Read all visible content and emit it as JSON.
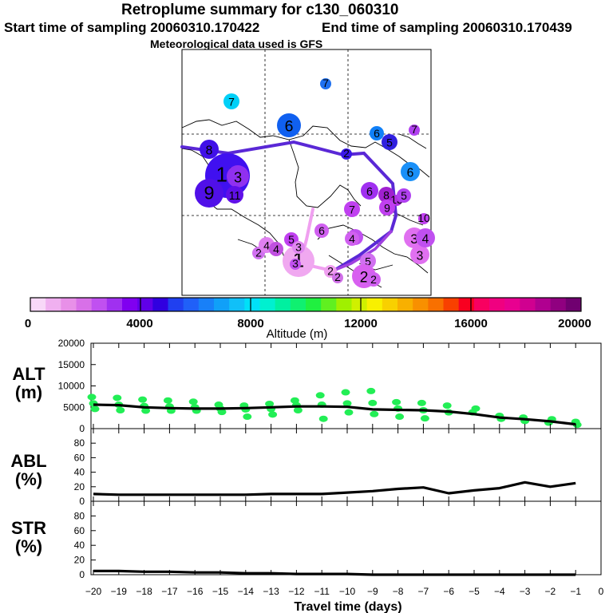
{
  "header": {
    "title": "Retroplume summary for c130_060310",
    "start_label": "Start time of sampling 20060310.170422",
    "end_label": "End time of sampling 20060310.170439",
    "met_label": "Meteorological data used is GFS"
  },
  "colors": {
    "palette": [
      "#f8d8f8",
      "#f0b0f0",
      "#e890e8",
      "#d870e8",
      "#c050f0",
      "#a030f0",
      "#8000f0",
      "#6000e8",
      "#3000e0",
      "#2040f0",
      "#2060f8",
      "#1880f8",
      "#10a0f8",
      "#10c0f8",
      "#00e0f8",
      "#00f0d0",
      "#00f0a0",
      "#10f070",
      "#20f040",
      "#60f020",
      "#a0f000",
      "#d0f000",
      "#f8f000",
      "#f8d000",
      "#f8b000",
      "#f89000",
      "#f87000",
      "#f84000",
      "#f80020",
      "#f80060",
      "#f00080",
      "#e80090",
      "#d00090",
      "#b00090",
      "#900080",
      "#700070"
    ],
    "scatter": "#22ee55",
    "track_upper": "#5a28d6",
    "track_lower": "#a040e0",
    "track_light": "#f0a0f0"
  },
  "map": {
    "points": [
      {
        "label": "7",
        "color": "#00d0f8",
        "alt": 7500
      },
      {
        "label": "7",
        "color": "#1e70f0",
        "alt": 5200
      },
      {
        "label": "6",
        "color": "#1060f0",
        "alt": 5600
      },
      {
        "label": "6",
        "color": "#1080f8",
        "alt": 5300
      },
      {
        "label": "5",
        "color": "#3020e0",
        "alt": 4300
      },
      {
        "label": "7",
        "color": "#b040f0",
        "alt": 2400
      },
      {
        "label": "8",
        "color": "#4010e8",
        "alt": 4400
      },
      {
        "label": "10",
        "color": "#4010f0",
        "alt": 4500
      },
      {
        "label": "3",
        "color": "#9030f0",
        "alt": 3800
      },
      {
        "label": "9",
        "color": "#5010e8",
        "alt": 4600
      },
      {
        "label": "11",
        "color": "#6010e8",
        "alt": 4400
      },
      {
        "label": "2",
        "color": "#3a18e8",
        "alt": 4300
      },
      {
        "label": "6",
        "color": "#1a90f8",
        "alt": 5800
      },
      {
        "label": "6",
        "color": "#a030f0",
        "alt": 3400
      },
      {
        "label": "8",
        "color": "#a020d0",
        "alt": 3200
      },
      {
        "label": "13",
        "color": "#b030e0",
        "alt": 3000
      },
      {
        "label": "5",
        "color": "#b040f0",
        "alt": 2900
      },
      {
        "label": "9",
        "color": "#c040f0",
        "alt": 2700
      },
      {
        "label": "7",
        "color": "#c040f0",
        "alt": 2600
      },
      {
        "label": "6",
        "color": "#d060f0",
        "alt": 2000
      },
      {
        "label": "4",
        "color": "#c050f0",
        "alt": 2000
      },
      {
        "label": "3",
        "color": "#e070f0",
        "alt": 1500
      },
      {
        "label": "3",
        "color": "#e070f0",
        "alt": 1400
      },
      {
        "label": "4",
        "color": "#c050f0",
        "alt": 1600
      },
      {
        "label": "10",
        "color": "#c040f0",
        "alt": 2100
      },
      {
        "label": "5",
        "color": "#c040f0",
        "alt": 1900
      },
      {
        "label": "2",
        "color": "#d070f0",
        "alt": 1300
      },
      {
        "label": "1",
        "color": "#f0a8f0",
        "alt": 600
      },
      {
        "label": "4",
        "color": "#e080f0",
        "alt": 1300
      },
      {
        "label": "2",
        "color": "#f0a0f0",
        "alt": 900
      },
      {
        "label": "3",
        "color": "#e088f0",
        "alt": 1100
      },
      {
        "label": "5",
        "color": "#d070f0",
        "alt": 1200
      },
      {
        "label": "2",
        "color": "#d860f0",
        "alt": 1000
      },
      {
        "label": "2",
        "color": "#d060f0",
        "alt": 900
      },
      {
        "label": "3",
        "color": "#c050f0",
        "alt": 900
      },
      {
        "label": "2",
        "color": "#d070e8",
        "alt": 800
      },
      {
        "label": "4",
        "color": "#c050e0",
        "alt": 1700
      },
      {
        "label": "4",
        "color": "#d060f0",
        "alt": 1000
      }
    ]
  },
  "chart_data": [
    {
      "type": "heatmap",
      "title": "Altitude colorbar",
      "xlabel": "Altitude (m)",
      "range": [
        0,
        20000
      ],
      "tick_labels": [
        "0",
        "4000",
        "8000",
        "12000",
        "16000",
        "20000"
      ]
    },
    {
      "type": "scatter",
      "ylabel_line1": "ALT",
      "ylabel_line2": "(m)",
      "ylim": [
        0,
        20000
      ],
      "yticks": [
        "0",
        "5000",
        "10000",
        "15000",
        "20000"
      ],
      "ytick_values": [
        0,
        5000,
        10000,
        15000,
        20000
      ],
      "median_x": [
        -20,
        -19,
        -18,
        -17,
        -16,
        -15,
        -14,
        -13,
        -12,
        -11,
        -10,
        -9,
        -8,
        -7,
        -6,
        -5,
        -4,
        -3,
        -2,
        -1
      ],
      "median_y": [
        5600,
        5500,
        5000,
        4800,
        4700,
        4700,
        4800,
        5000,
        5200,
        5200,
        5100,
        4500,
        4400,
        4300,
        4000,
        3400,
        2600,
        2200,
        1700,
        1000
      ],
      "scatter_x": [
        -20,
        -20,
        -20,
        -19,
        -19,
        -19,
        -18,
        -18,
        -18,
        -17,
        -17,
        -17,
        -16,
        -16,
        -16,
        -15,
        -15,
        -15,
        -14,
        -14,
        -14,
        -13,
        -13,
        -13,
        -12,
        -12,
        -12,
        -11,
        -11,
        -11,
        -10,
        -10,
        -10,
        -9,
        -9,
        -9,
        -8,
        -8,
        -8,
        -7,
        -7,
        -7,
        -6,
        -6,
        -5,
        -5,
        -4,
        -4,
        -3,
        -3,
        -2,
        -2,
        -1,
        -1
      ],
      "scatter_y": [
        7400,
        5900,
        4600,
        7200,
        5600,
        4300,
        6800,
        5300,
        4200,
        6600,
        5200,
        4200,
        6300,
        5000,
        4200,
        5600,
        4700,
        3900,
        5400,
        4500,
        2800,
        5800,
        4600,
        3300,
        6600,
        5500,
        4300,
        7800,
        5600,
        2300,
        8500,
        5900,
        3800,
        8800,
        6000,
        3400,
        6200,
        4700,
        2800,
        6000,
        4300,
        2400,
        5400,
        3800,
        4700,
        3800,
        3000,
        2300,
        2600,
        1800,
        2200,
        1400,
        1600,
        900
      ]
    },
    {
      "type": "line",
      "ylabel_line1": "ABL",
      "ylabel_line2": "(%)",
      "ylim": [
        0,
        100
      ],
      "yticks": [
        "0",
        "20",
        "40",
        "60",
        "80"
      ],
      "ytick_values": [
        0,
        20,
        40,
        60,
        80
      ],
      "x": [
        -20,
        -19,
        -18,
        -17,
        -16,
        -15,
        -14,
        -13,
        -12,
        -11,
        -10,
        -9,
        -8,
        -7,
        -6,
        -5,
        -4,
        -3,
        -2,
        -1
      ],
      "y": [
        10,
        9,
        9,
        9,
        9,
        9,
        9,
        10,
        10,
        10,
        12,
        14,
        17,
        19,
        11,
        15,
        18,
        26,
        20,
        25
      ]
    },
    {
      "type": "line",
      "ylabel_line1": "STR",
      "ylabel_line2": "(%)",
      "ylim": [
        0,
        100
      ],
      "yticks": [
        "0",
        "20",
        "40",
        "60",
        "80"
      ],
      "ytick_values": [
        0,
        20,
        40,
        60,
        80
      ],
      "x": [
        -20,
        -19,
        -18,
        -17,
        -16,
        -15,
        -14,
        -13,
        -12,
        -11,
        -10,
        -9,
        -8,
        -7,
        -6,
        -5,
        -4,
        -3,
        -2,
        -1
      ],
      "y": [
        5,
        5,
        4,
        4,
        3,
        3,
        2,
        2,
        1,
        1,
        1,
        0,
        0,
        0,
        0,
        0,
        0,
        0,
        0,
        0
      ]
    },
    {
      "type": "axis",
      "xlabel": "Travel time (days)",
      "xlim": [
        -20,
        0
      ],
      "x_ticks": [
        -20,
        -19,
        -18,
        -17,
        -16,
        -15,
        -14,
        -13,
        -12,
        -11,
        -10,
        -9,
        -8,
        -7,
        -6,
        -5,
        -4,
        -3,
        -2,
        -1,
        0
      ],
      "x_tick_labels": [
        "−20",
        "−19",
        "−18",
        "−17",
        "−16",
        "−15",
        "−14",
        "−13",
        "−12",
        "−11",
        "−10",
        "−9",
        "−8",
        "−7",
        "−6",
        "−5",
        "−4",
        "−3",
        "−2",
        "−1",
        "0"
      ]
    }
  ]
}
